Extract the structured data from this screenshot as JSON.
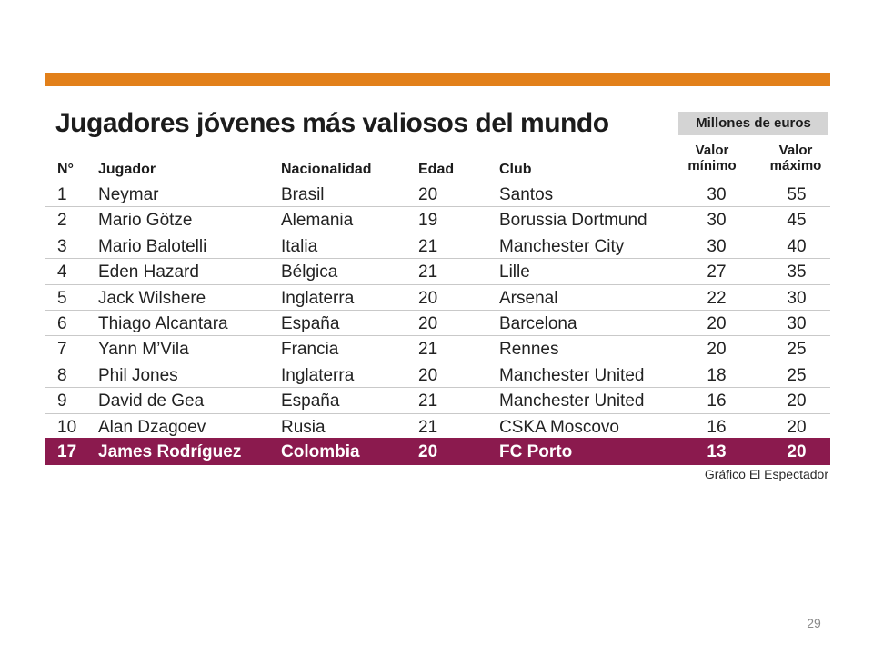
{
  "table": {
    "title": "Jugadores jóvenes más valiosos del mundo",
    "units_label": "Millones de euros",
    "headers": {
      "rank": "N°",
      "player": "Jugador",
      "nationality": "Nacionalidad",
      "age": "Edad",
      "club": "Club",
      "min_value_line1": "Valor",
      "min_value_line2": "mínimo",
      "max_value_line1": "Valor",
      "max_value_line2": "máximo"
    },
    "rows": [
      {
        "rank": "1",
        "player": "Neymar",
        "nationality": "Brasil",
        "age": "20",
        "club": "Santos",
        "min": "30",
        "max": "55"
      },
      {
        "rank": "2",
        "player": "Mario Götze",
        "nationality": "Alemania",
        "age": "19",
        "club": "Borussia Dortmund",
        "min": "30",
        "max": "45"
      },
      {
        "rank": "3",
        "player": "Mario Balotelli",
        "nationality": "Italia",
        "age": "21",
        "club": "Manchester City",
        "min": "30",
        "max": "40"
      },
      {
        "rank": "4",
        "player": "Eden Hazard",
        "nationality": "Bélgica",
        "age": "21",
        "club": "Lille",
        "min": "27",
        "max": "35"
      },
      {
        "rank": "5",
        "player": "Jack Wilshere",
        "nationality": "Inglaterra",
        "age": "20",
        "club": "Arsenal",
        "min": "22",
        "max": "30"
      },
      {
        "rank": "6",
        "player": "Thiago Alcantara",
        "nationality": "España",
        "age": "20",
        "club": "Barcelona",
        "min": "20",
        "max": "30"
      },
      {
        "rank": "7",
        "player": "Yann M’Vila",
        "nationality": "Francia",
        "age": "21",
        "club": "Rennes",
        "min": "20",
        "max": "25"
      },
      {
        "rank": "8",
        "player": "Phil Jones",
        "nationality": "Inglaterra",
        "age": "20",
        "club": "Manchester United",
        "min": "18",
        "max": "25"
      },
      {
        "rank": "9",
        "player": "David de Gea",
        "nationality": "España",
        "age": "21",
        "club": "Manchester United",
        "min": "16",
        "max": "20"
      },
      {
        "rank": "10",
        "player": "Alan Dzagoev",
        "nationality": "Rusia",
        "age": "21",
        "club": "CSKA Moscovo",
        "min": "16",
        "max": "20"
      }
    ],
    "highlight_row": {
      "rank": "17",
      "player": "James Rodríguez",
      "nationality": "Colombia",
      "age": "20",
      "club": "FC Porto",
      "min": "13",
      "max": "20"
    },
    "source": "Gráfico El Espectador"
  },
  "page_number": "29",
  "colors": {
    "accent_bar": "#e2801a",
    "highlight_row": "#8b1a4e",
    "units_box": "#d4d4d4"
  }
}
